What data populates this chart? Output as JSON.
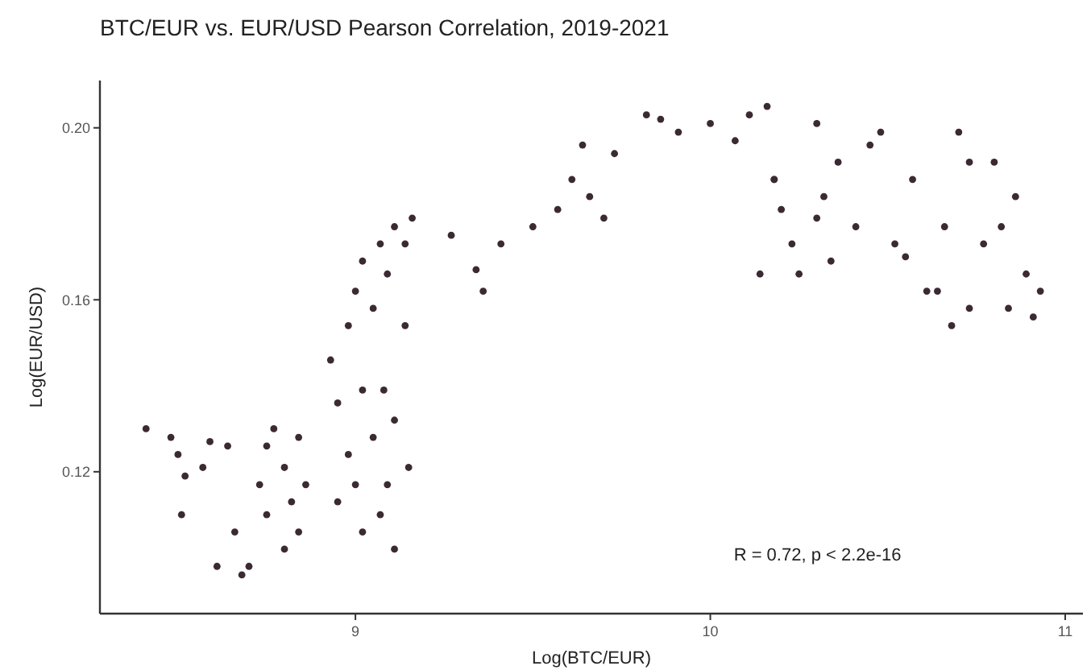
{
  "chart_data": {
    "type": "scatter",
    "title": "BTC/EUR vs. EUR/USD Pearson Correlation, 2019-2021",
    "xlabel": "Log(BTC/EUR)",
    "ylabel": "Log(EUR/USD)",
    "annotations": [
      "R = 0.72, p < 2.2e-16"
    ],
    "xlim": [
      8.28,
      11.05
    ],
    "ylim": [
      0.087,
      0.211
    ],
    "xticks": [
      9,
      10,
      11
    ],
    "yticks": [
      {
        "value": 0.12,
        "label": "0.12"
      },
      {
        "value": 0.16,
        "label": "0.16"
      },
      {
        "value": 0.2,
        "label": "0.20"
      }
    ],
    "grid": false,
    "marker": "circle",
    "series": [
      {
        "color": "#3b2a33",
        "x": [
          8.41,
          8.48,
          8.5,
          8.52,
          8.51,
          8.59,
          8.64,
          8.57,
          8.61,
          8.68,
          8.7,
          8.66,
          8.73,
          8.75,
          8.77,
          8.8,
          8.82,
          8.84,
          8.86,
          8.8,
          8.75,
          8.84,
          8.93,
          8.95,
          8.98,
          9.0,
          8.95,
          9.02,
          9.07,
          9.11,
          9.09,
          9.05,
          9.02,
          8.98,
          9.0,
          9.02,
          9.07,
          9.11,
          9.14,
          9.16,
          9.09,
          9.05,
          9.14,
          9.11,
          9.15,
          9.08,
          9.27,
          9.34,
          9.36,
          9.41,
          9.5,
          9.57,
          9.61,
          9.64,
          9.66,
          9.7,
          9.73,
          9.82,
          9.86,
          9.91,
          10.0,
          10.07,
          10.11,
          10.16,
          10.18,
          10.2,
          10.23,
          10.25,
          10.3,
          10.32,
          10.36,
          10.41,
          10.45,
          10.48,
          10.52,
          10.57,
          10.61,
          10.66,
          10.68,
          10.73,
          10.77,
          10.82,
          10.84,
          10.89,
          10.93,
          10.91,
          10.73,
          10.64,
          10.55,
          10.7,
          10.8,
          10.86,
          10.3,
          10.34,
          10.14,
          10.18
        ],
        "values": [
          0.13,
          0.128,
          0.124,
          0.119,
          0.11,
          0.127,
          0.126,
          0.121,
          0.098,
          0.096,
          0.098,
          0.106,
          0.117,
          0.126,
          0.13,
          0.121,
          0.113,
          0.106,
          0.117,
          0.102,
          0.11,
          0.128,
          0.146,
          0.136,
          0.124,
          0.117,
          0.113,
          0.106,
          0.11,
          0.102,
          0.117,
          0.128,
          0.139,
          0.154,
          0.162,
          0.169,
          0.173,
          0.177,
          0.173,
          0.179,
          0.166,
          0.158,
          0.154,
          0.132,
          0.121,
          0.139,
          0.175,
          0.167,
          0.162,
          0.173,
          0.177,
          0.181,
          0.188,
          0.196,
          0.184,
          0.179,
          0.194,
          0.203,
          0.202,
          0.199,
          0.201,
          0.197,
          0.203,
          0.205,
          0.188,
          0.181,
          0.173,
          0.166,
          0.201,
          0.184,
          0.192,
          0.177,
          0.196,
          0.199,
          0.173,
          0.188,
          0.162,
          0.177,
          0.154,
          0.192,
          0.173,
          0.177,
          0.158,
          0.166,
          0.162,
          0.156,
          0.158,
          0.162,
          0.17,
          0.199,
          0.192,
          0.184,
          0.179,
          0.169,
          0.166,
          0.188
        ]
      }
    ]
  }
}
